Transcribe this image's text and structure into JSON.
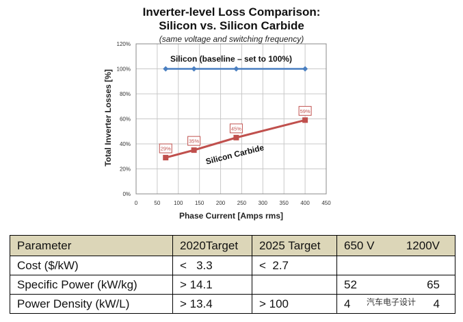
{
  "chart_data": {
    "type": "line",
    "title": "Inverter-level Loss Comparison:",
    "title_line2": "Silicon vs. Silicon Carbide",
    "subtitle": "(same voltage and switching frequency)",
    "xlabel": "Phase Current [Amps rms]",
    "ylabel": "Total Inverter Losses [%]",
    "xlim": [
      0,
      450
    ],
    "ylim": [
      0,
      120
    ],
    "xticks": [
      0,
      50,
      100,
      150,
      200,
      250,
      300,
      350,
      400,
      450
    ],
    "yticks": [
      0,
      20,
      40,
      60,
      80,
      100,
      120
    ],
    "grid": true,
    "series": [
      {
        "name": "Silicon (baseline – set to 100%)",
        "color": "#4a7fc1",
        "x": [
          70,
          137,
          237,
          400
        ],
        "values": [
          100,
          100,
          100,
          100
        ]
      },
      {
        "name": "Silicon Carbide",
        "color": "#c0504d",
        "x": [
          70,
          137,
          237,
          400
        ],
        "values": [
          29,
          35,
          45,
          59
        ],
        "labels": [
          "29%",
          "35%",
          "45%",
          "59%"
        ]
      }
    ]
  },
  "table": {
    "header": [
      "Parameter",
      "2020Target",
      "2025 Target",
      "650 V",
      "1200V"
    ],
    "rows": [
      [
        "Cost ($/kW)",
        "<   3.3",
        "<  2.7",
        "",
        ""
      ],
      [
        "Specific Power (kW/kg)",
        "> 14.1",
        "",
        "52",
        "65"
      ],
      [
        "Power Density (kW/L)",
        "> 13.4",
        "> 100",
        "4",
        "4"
      ]
    ]
  },
  "watermark": "汽车电子设计"
}
